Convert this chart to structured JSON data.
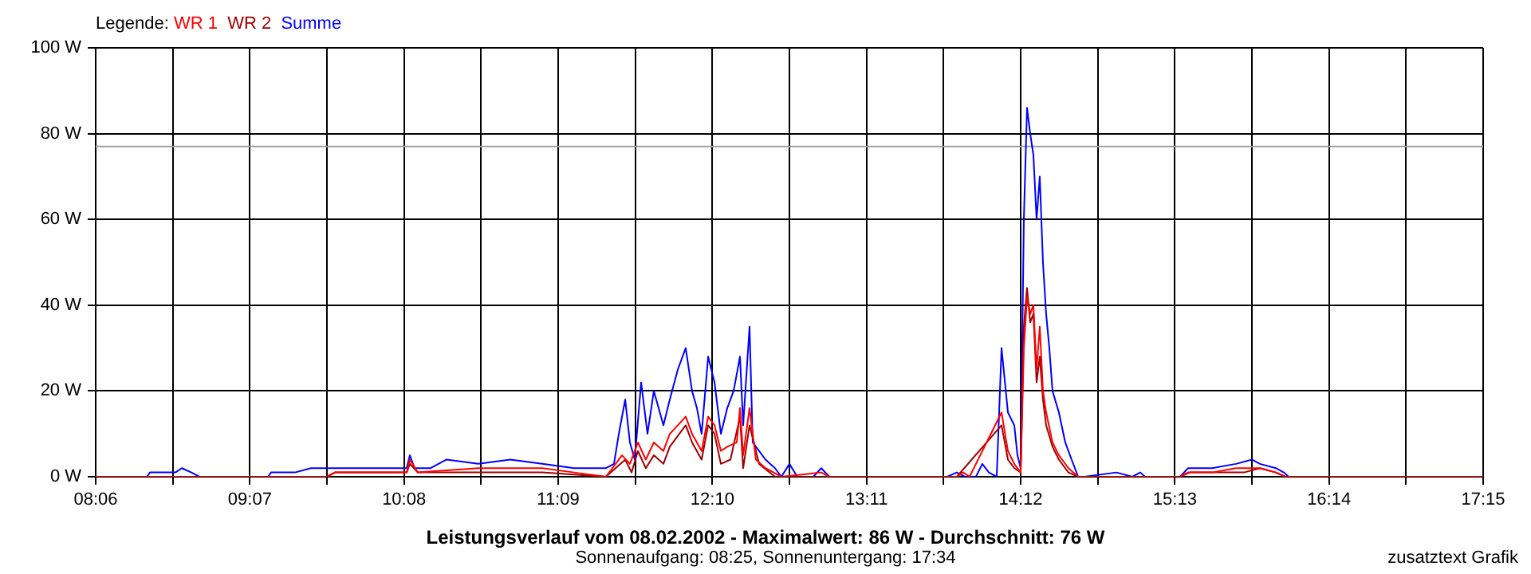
{
  "chart_data": {
    "type": "line",
    "title": "Leistungsverlauf vom 08.02.2002 - Maximalwert: 86 W - Durchschnitt: 76 W",
    "subtitle": "Sonnenaufgang: 08:25, Sonnenuntergang: 17:34",
    "legend_title": "Legende:",
    "legend": "top left",
    "grid": true,
    "marker": "none",
    "line_style": "solid",
    "annotations": [
      "zusatztext Grafik"
    ],
    "xlim": [
      8.1,
      17.25
    ],
    "xticks": [
      {
        "value": 8.1,
        "label": "08:06"
      },
      {
        "value": 8.6083,
        "label": null
      },
      {
        "value": 9.1167,
        "label": "09:07"
      },
      {
        "value": 9.625,
        "label": null
      },
      {
        "value": 10.1333,
        "label": "10:08"
      },
      {
        "value": 10.6417,
        "label": null
      },
      {
        "value": 11.15,
        "label": "11:09"
      },
      {
        "value": 11.6583,
        "label": null
      },
      {
        "value": 12.1667,
        "label": "12:10"
      },
      {
        "value": 12.675,
        "label": null
      },
      {
        "value": 13.1833,
        "label": "13:11"
      },
      {
        "value": 13.6917,
        "label": null
      },
      {
        "value": 14.2,
        "label": "14:12"
      },
      {
        "value": 14.7083,
        "label": null
      },
      {
        "value": 15.2167,
        "label": "15:13"
      },
      {
        "value": 15.725,
        "label": null
      },
      {
        "value": 16.2333,
        "label": "16:14"
      },
      {
        "value": 16.7417,
        "label": null
      },
      {
        "value": 17.25,
        "label": "17:15"
      }
    ],
    "ylim": [
      0,
      100
    ],
    "yticks": [
      {
        "value": 0,
        "label": "0 W"
      },
      {
        "value": 20,
        "label": "20 W"
      },
      {
        "value": 40,
        "label": "40 W"
      },
      {
        "value": 60,
        "label": "60 W"
      },
      {
        "value": 80,
        "label": "80 W"
      },
      {
        "value": 100,
        "label": "100 W"
      }
    ],
    "ref_lines": [
      {
        "axis": "y",
        "value": 77,
        "color": "#a0a0a0"
      }
    ],
    "series": [
      {
        "name": "WR 1",
        "color": "#ff0000",
        "x": [
          8.1,
          9.625,
          9.678,
          9.993,
          10.151,
          10.172,
          10.224,
          10.624,
          11.045,
          11.255,
          11.465,
          11.571,
          11.623,
          11.676,
          11.728,
          11.781,
          11.844,
          11.886,
          11.939,
          11.991,
          12.033,
          12.096,
          12.139,
          12.181,
          12.223,
          12.265,
          12.328,
          12.349,
          12.37,
          12.412,
          12.454,
          12.517,
          12.622,
          12.885,
          12.938,
          13.779,
          13.821,
          13.863,
          14.074,
          14.116,
          14.158,
          14.2,
          14.221,
          14.242,
          14.263,
          14.284,
          14.305,
          14.326,
          14.347,
          14.368,
          14.41,
          14.452,
          14.515,
          14.579,
          15.252,
          15.304,
          15.462,
          15.62,
          15.778,
          15.883,
          15.946,
          17.25
        ],
        "values": [
          0,
          0,
          1,
          1,
          1,
          4,
          1,
          2,
          2,
          1,
          0,
          5,
          3,
          8,
          4,
          8,
          6,
          10,
          12,
          14,
          10,
          6,
          14,
          12,
          6,
          7,
          8,
          16,
          5,
          16,
          4,
          2,
          0,
          1,
          0,
          0,
          1,
          0,
          15,
          6,
          3,
          1,
          30,
          42,
          38,
          40,
          25,
          35,
          20,
          15,
          8,
          5,
          2,
          0,
          0,
          1,
          1,
          2,
          2,
          1,
          0,
          0
        ]
      },
      {
        "name": "WR 2",
        "color": "#a00000",
        "x": [
          8.1,
          9.625,
          9.678,
          10.151,
          10.172,
          10.224,
          10.624,
          11.045,
          11.465,
          11.592,
          11.634,
          11.676,
          11.728,
          11.781,
          11.844,
          11.886,
          11.949,
          11.991,
          12.033,
          12.096,
          12.139,
          12.181,
          12.223,
          12.286,
          12.349,
          12.37,
          12.412,
          12.475,
          12.58,
          13.779,
          14.074,
          14.116,
          14.158,
          14.2,
          14.221,
          14.242,
          14.263,
          14.284,
          14.305,
          14.326,
          14.347,
          14.368,
          14.41,
          14.452,
          14.515,
          14.579,
          15.252,
          15.315,
          15.673,
          15.778,
          15.883,
          15.946,
          17.25
        ],
        "values": [
          0,
          0,
          1,
          1,
          3,
          1,
          1,
          1,
          0,
          4,
          1,
          6,
          2,
          5,
          3,
          7,
          10,
          12,
          8,
          4,
          12,
          10,
          3,
          4,
          14,
          2,
          12,
          3,
          0,
          0,
          12,
          4,
          2,
          1,
          35,
          44,
          36,
          38,
          22,
          28,
          18,
          12,
          7,
          4,
          1,
          0,
          0,
          1,
          1,
          2,
          1,
          0,
          0
        ]
      },
      {
        "name": "Summe",
        "color": "#0000ff",
        "x": [
          8.1,
          8.437,
          8.458,
          8.626,
          8.668,
          8.731,
          8.784,
          9.236,
          9.257,
          9.415,
          9.52,
          9.73,
          9.835,
          9.993,
          10.151,
          10.172,
          10.203,
          10.309,
          10.414,
          10.624,
          10.834,
          11.045,
          11.255,
          11.465,
          11.518,
          11.55,
          11.592,
          11.623,
          11.655,
          11.697,
          11.739,
          11.781,
          11.844,
          11.886,
          11.939,
          11.991,
          12.033,
          12.065,
          12.096,
          12.139,
          12.181,
          12.223,
          12.265,
          12.307,
          12.349,
          12.37,
          12.412,
          12.433,
          12.475,
          12.517,
          12.58,
          12.622,
          12.675,
          12.727,
          12.833,
          12.885,
          12.938,
          13.716,
          13.779,
          13.832,
          13.905,
          13.947,
          13.99,
          14.042,
          14.074,
          14.116,
          14.158,
          14.179,
          14.2,
          14.221,
          14.242,
          14.263,
          14.284,
          14.305,
          14.326,
          14.347,
          14.368,
          14.389,
          14.41,
          14.452,
          14.494,
          14.536,
          14.579,
          14.621,
          14.831,
          14.936,
          14.989,
          15.02,
          15.252,
          15.304,
          15.462,
          15.62,
          15.725,
          15.778,
          15.883,
          15.935,
          15.967,
          17.25
        ],
        "values": [
          0,
          0,
          1,
          1,
          2,
          1,
          0,
          0,
          1,
          1,
          2,
          2,
          2,
          2,
          2,
          5,
          2,
          2,
          4,
          3,
          4,
          3,
          2,
          2,
          3,
          10,
          18,
          8,
          4,
          22,
          10,
          20,
          12,
          18,
          25,
          30,
          20,
          16,
          10,
          28,
          22,
          10,
          16,
          20,
          28,
          12,
          35,
          8,
          6,
          4,
          2,
          0,
          3,
          0,
          0,
          2,
          0,
          0,
          1,
          0,
          0,
          3,
          1,
          0,
          30,
          15,
          12,
          5,
          2,
          60,
          86,
          80,
          75,
          60,
          70,
          50,
          38,
          30,
          20,
          15,
          8,
          4,
          0,
          0,
          1,
          0,
          1,
          0,
          0,
          2,
          2,
          3,
          4,
          3,
          2,
          1,
          0,
          0
        ]
      }
    ]
  }
}
